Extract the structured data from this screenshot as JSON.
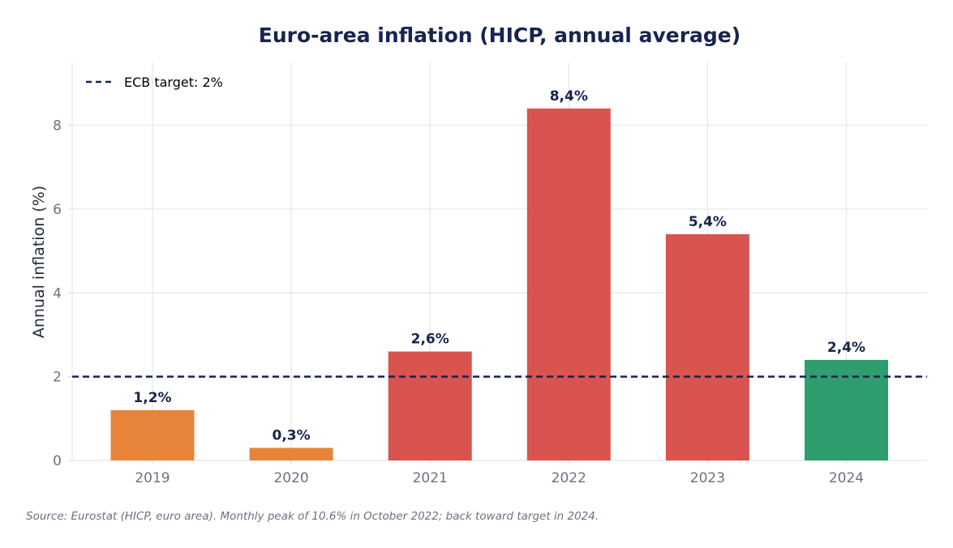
{
  "chart_data": {
    "type": "bar",
    "title": "Euro-area inflation (HICP, annual average)",
    "xlabel": "",
    "ylabel": "Annual inflation (%)",
    "categories": [
      "2019",
      "2020",
      "2021",
      "2022",
      "2023",
      "2024"
    ],
    "values": [
      1.2,
      0.3,
      2.6,
      8.4,
      5.4,
      2.4
    ],
    "data_labels": [
      "1,2%",
      "0,3%",
      "2,6%",
      "8,4%",
      "5,4%",
      "2,4%"
    ],
    "bar_colors": [
      "#e8843a",
      "#e8843a",
      "#d9534f",
      "#d9534f",
      "#d9534f",
      "#2e9e6f"
    ],
    "ylim": [
      0,
      9.5
    ],
    "yticks": [
      0,
      2,
      4,
      6,
      8
    ],
    "grid": true,
    "reference_line": {
      "value": 2,
      "label": "ECB target: 2%",
      "color": "#17244d",
      "style": "dashed"
    },
    "legend_position": "top-left",
    "source_note": "Source: Eurostat (HICP, euro area). Monthly peak of 10.6% in October 2022; back toward target in 2024."
  }
}
